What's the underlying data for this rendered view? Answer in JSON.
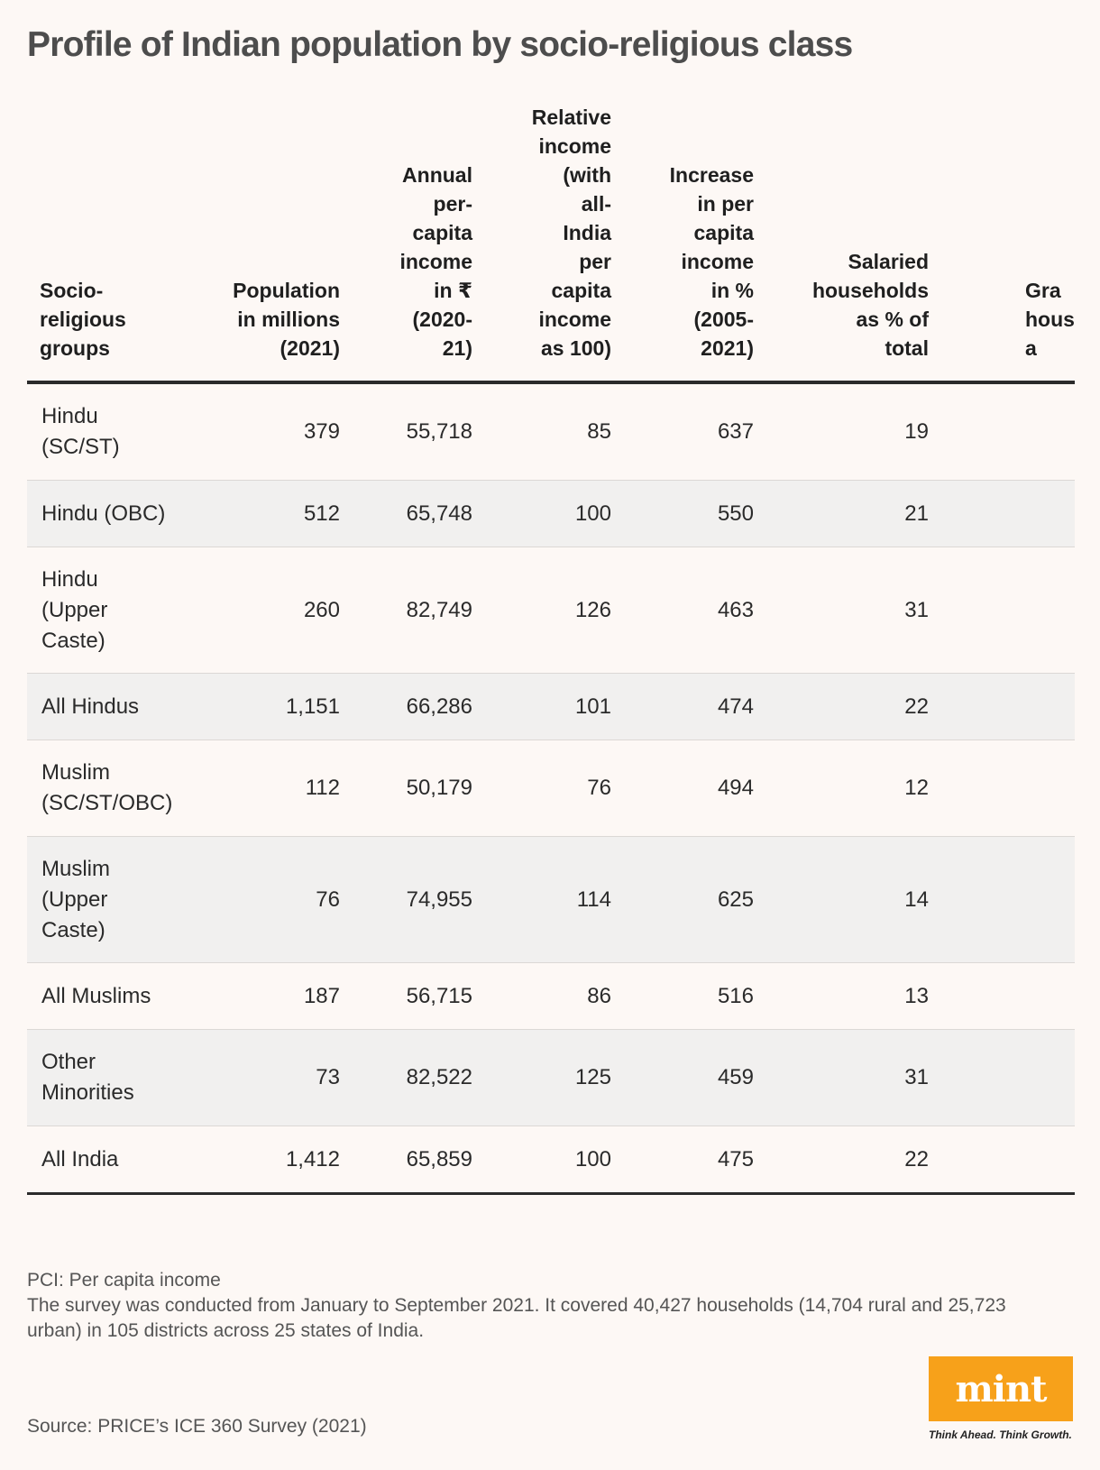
{
  "title": "Profile of Indian population by socio-religious class",
  "table": {
    "headers": [
      "Socio-\nreligious\ngroups",
      "Population\nin millions\n(2021)",
      "Annual\nper-\ncapita\nincome\nin ₹\n(2020-\n21)",
      "Relative\nincome\n(with\nall-\nIndia\nper\ncapita\nincome\nas 100)",
      "Increase\nin per\ncapita\nincome\nin %\n(2005-\n2021)",
      "Salaried\nhouseholds\nas % of\ntotal",
      "Gra\nhous\na"
    ],
    "rows": [
      {
        "group": "Hindu\n(SC/ST)",
        "population": "379",
        "income": "55,718",
        "relative": "85",
        "increase": "637",
        "salaried": "19"
      },
      {
        "group": "Hindu (OBC)",
        "population": "512",
        "income": "65,748",
        "relative": "100",
        "increase": "550",
        "salaried": "21"
      },
      {
        "group": "Hindu\n(Upper\nCaste)",
        "population": "260",
        "income": "82,749",
        "relative": "126",
        "increase": "463",
        "salaried": "31"
      },
      {
        "group": "All Hindus",
        "population": "1,151",
        "income": "66,286",
        "relative": "101",
        "increase": "474",
        "salaried": "22"
      },
      {
        "group": "Muslim\n(SC/ST/OBC)",
        "population": "112",
        "income": "50,179",
        "relative": "76",
        "increase": "494",
        "salaried": "12"
      },
      {
        "group": "Muslim\n(Upper\nCaste)",
        "population": "76",
        "income": "74,955",
        "relative": "114",
        "increase": "625",
        "salaried": "14"
      },
      {
        "group": "All Muslims",
        "population": "187",
        "income": "56,715",
        "relative": "86",
        "increase": "516",
        "salaried": "13"
      },
      {
        "group": "Other\nMinorities",
        "population": "73",
        "income": "82,522",
        "relative": "125",
        "increase": "459",
        "salaried": "31"
      },
      {
        "group": "All India",
        "population": "1,412",
        "income": "65,859",
        "relative": "100",
        "increase": "475",
        "salaried": "22"
      }
    ]
  },
  "notes": {
    "line1": "PCI: Per capita income",
    "line2": "The survey was conducted from January to September 2021. It covered 40,427 households (14,704 rural and 25,723 urban) in 105 districts across 25 states of India."
  },
  "source": "Source: PRICE’s ICE 360 Survey (2021)",
  "logo": {
    "name": "mint",
    "tagline": "Think Ahead. Think Growth."
  },
  "colors": {
    "background": "#fdf8f5",
    "row_shade": "#f1f0ef",
    "logo_orange": "#f7a11a"
  }
}
